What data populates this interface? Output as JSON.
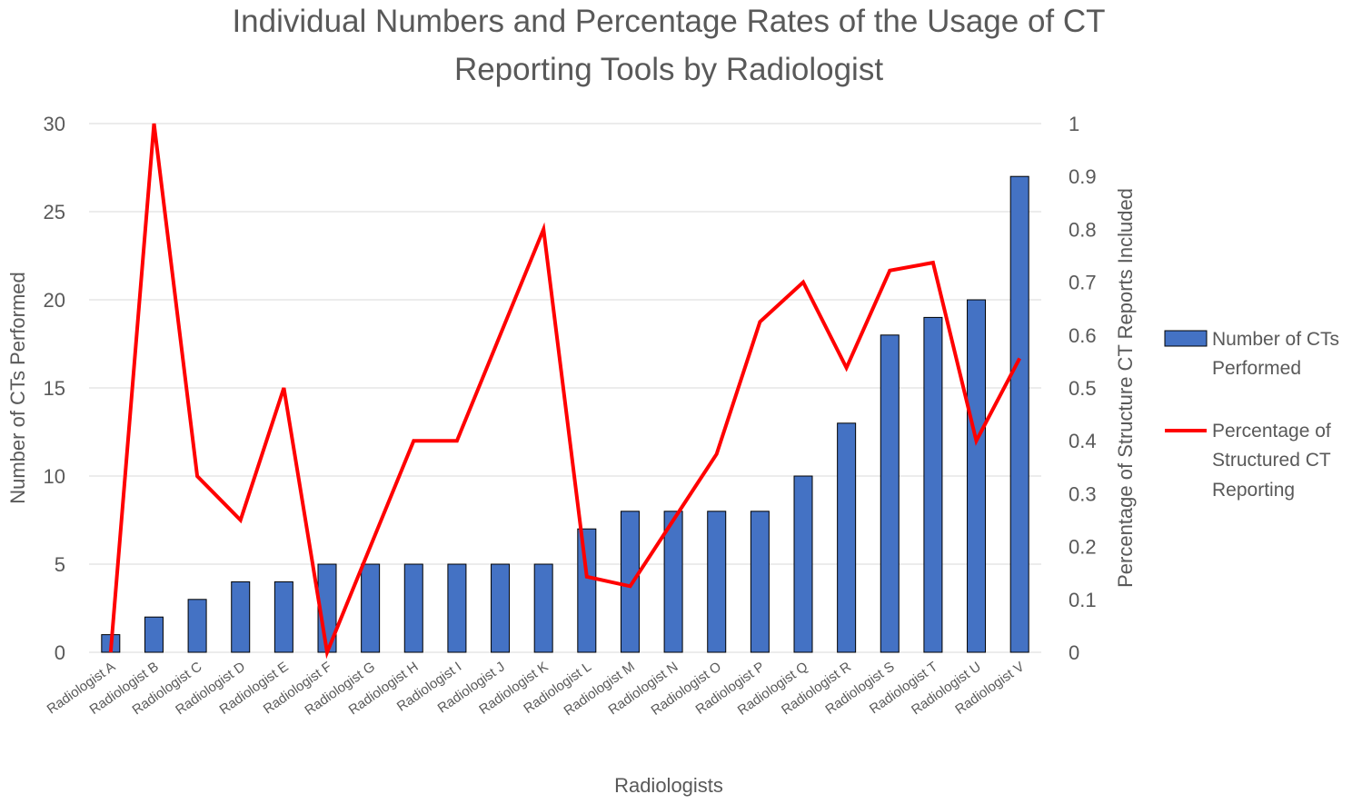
{
  "chart_data": {
    "type": "bar",
    "title": "Individual Numbers and Percentage Rates of the Usage of CT Reporting Tools by Radiologist",
    "title_lines": [
      "Individual Numbers and Percentage Rates of the Usage of CT",
      "Reporting Tools by Radiologist"
    ],
    "xlabel": "Radiologists",
    "ylabel": "Number of CTs Performed",
    "y2label": "Percentage of Structure CT Reports Included",
    "ylim": [
      0,
      30
    ],
    "y2lim": [
      0,
      1
    ],
    "yticks": [
      "0",
      "5",
      "10",
      "15",
      "20",
      "25",
      "30"
    ],
    "y2ticks": [
      "0",
      "0.1",
      "0.2",
      "0.3",
      "0.4",
      "0.5",
      "0.6",
      "0.7",
      "0.8",
      "0.9",
      "1"
    ],
    "grid": true,
    "legend_position": "right",
    "categories": [
      "Radiologist A",
      "Radiologist B",
      "Radiologist C",
      "Radiologist D",
      "Radiologist E",
      "Radiologist F",
      "Radiologist G",
      "Radiologist H",
      "Radiologist I",
      "Radiologist J",
      "Radiologist K",
      "Radiologist L",
      "Radiologist M",
      "Radiologist N",
      "Radiologist O",
      "Radiologist P",
      "Radiologist Q",
      "Radiologist R",
      "Radiologist S",
      "Radiologist T",
      "Radiologist U",
      "Radiologist V"
    ],
    "series": [
      {
        "name": "Number of CTs Performed",
        "legend_lines": [
          "Number of CTs",
          "Performed"
        ],
        "type": "bar",
        "axis": "left",
        "color": "#4472C4",
        "values": [
          1,
          2,
          3,
          4,
          4,
          5,
          5,
          5,
          5,
          5,
          5,
          7,
          8,
          8,
          8,
          8,
          10,
          13,
          18,
          19,
          20,
          27
        ]
      },
      {
        "name": "Percentage of Structured CT Reporting",
        "legend_lines": [
          "Percentage of",
          "Structured CT",
          "Reporting"
        ],
        "type": "line",
        "axis": "right",
        "color": "#FF0000",
        "values": [
          0,
          1,
          0.333,
          0.25,
          0.5,
          0,
          0.2,
          0.4,
          0.4,
          0.6,
          0.8,
          0.143,
          0.125,
          0.25,
          0.375,
          0.625,
          0.7,
          0.538,
          0.722,
          0.737,
          0.4,
          0.556
        ]
      }
    ]
  }
}
